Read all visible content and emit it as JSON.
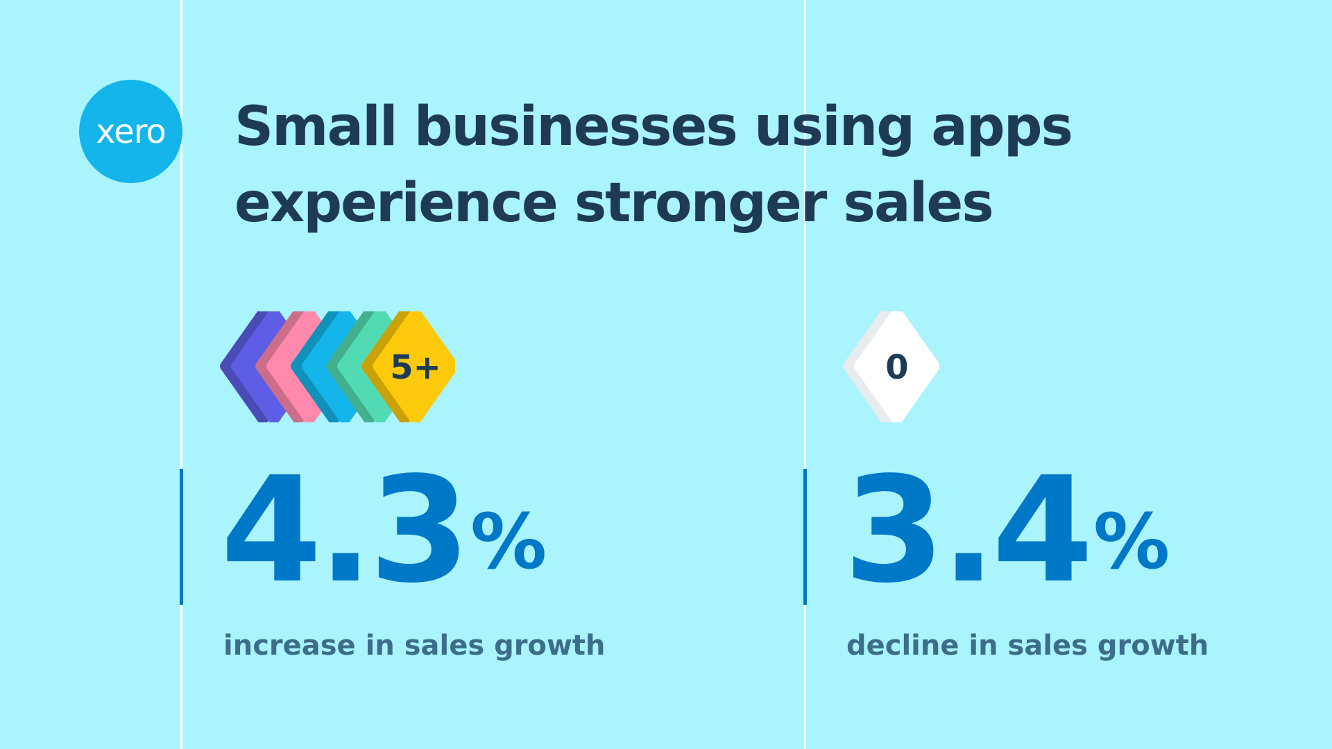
{
  "brand": {
    "logo_text": "xero",
    "color": "#13b5ea"
  },
  "title": "Small businesses using apps experience stronger sales",
  "stats": [
    {
      "badge": "5+",
      "value": "4.3",
      "unit": "%",
      "caption": "increase in sales growth",
      "badge_colors": [
        "#5d5ee5",
        "#ff89ad",
        "#13b5ea",
        "#52dbb2",
        "#fcca0a"
      ]
    },
    {
      "badge": "0",
      "value": "3.4",
      "unit": "%",
      "caption": "decline in sales growth",
      "badge_colors": [
        "#ffffff"
      ]
    }
  ]
}
